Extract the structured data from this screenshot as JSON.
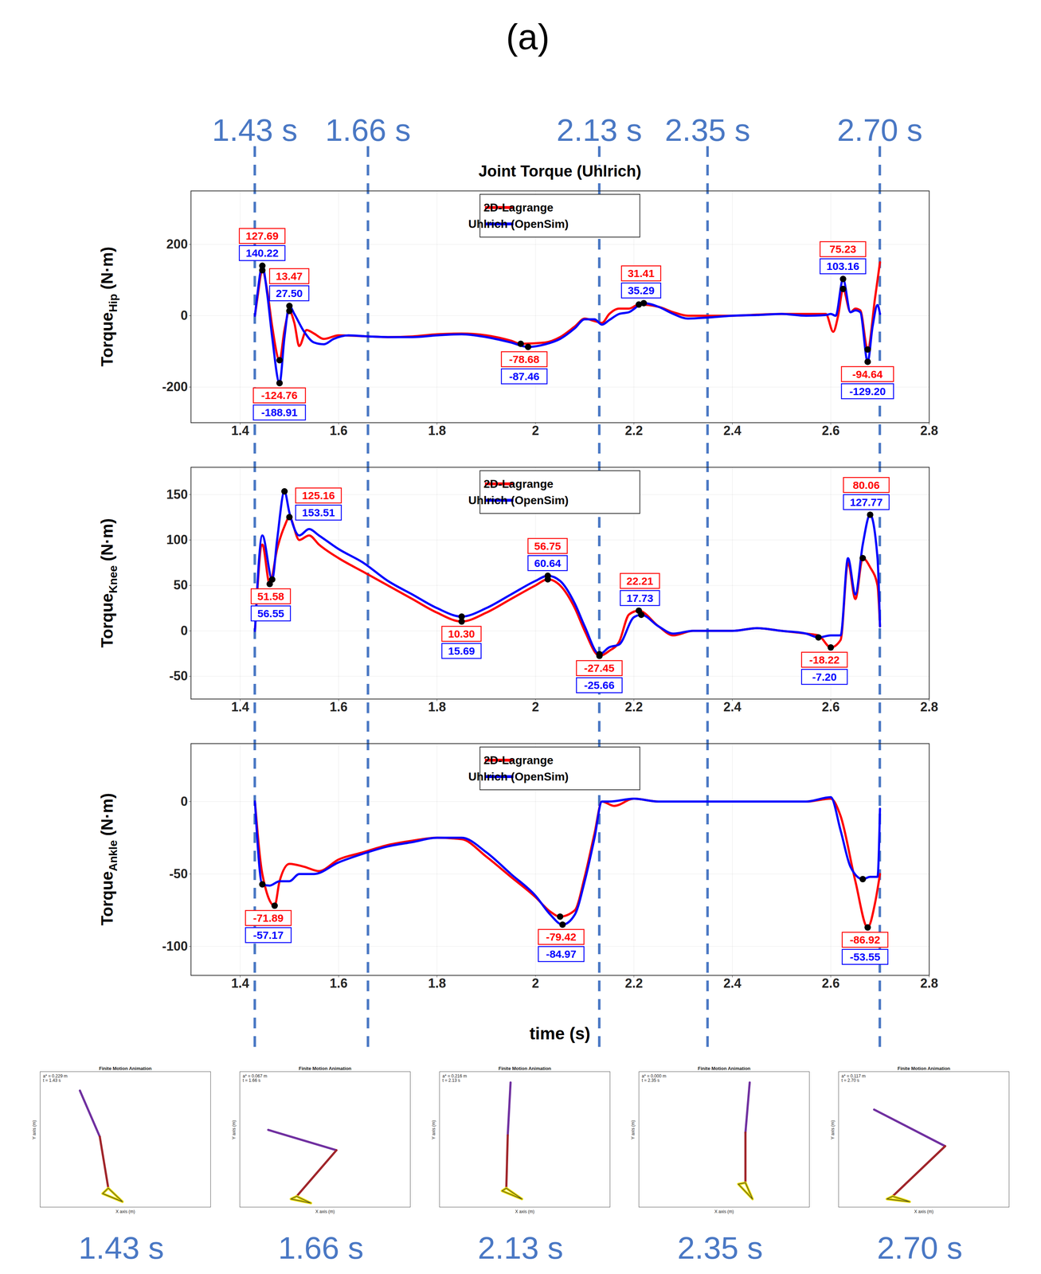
{
  "panel_label": "(a)",
  "time_markers": {
    "color": "#4a78c4",
    "line_style": "dashed",
    "ticks": [
      {
        "value": 1.43,
        "label": "1.43 s"
      },
      {
        "value": 1.66,
        "label": "1.66 s"
      },
      {
        "value": 2.13,
        "label": "2.13 s"
      },
      {
        "value": 2.35,
        "label": "2.35 s"
      },
      {
        "value": 2.7,
        "label": "2.70 s"
      }
    ]
  },
  "chart_data": [
    {
      "type": "line",
      "title": "Joint Torque (Uhlrich)",
      "ylabel": {
        "text": "Torque",
        "subscript": "Hip",
        "unit": "(N·m)"
      },
      "xlim": [
        1.3,
        2.8
      ],
      "xticks": [
        1.4,
        1.6,
        1.8,
        2,
        2.2,
        2.4,
        2.6,
        2.8
      ],
      "ylim": [
        -300,
        350
      ],
      "yticks": [
        -200,
        0,
        200
      ],
      "grid": true,
      "legend": "top",
      "series": [
        {
          "name": "2D-Lagrange",
          "color": "#ff0000",
          "x": [
            1.43,
            1.435,
            1.445,
            1.455,
            1.465,
            1.48,
            1.49,
            1.5,
            1.51,
            1.52,
            1.535,
            1.55,
            1.57,
            1.6,
            1.66,
            1.7,
            1.75,
            1.8,
            1.85,
            1.9,
            1.95,
            1.97,
            2.02,
            2.05,
            2.08,
            2.1,
            2.12,
            2.135,
            2.15,
            2.17,
            2.19,
            2.21,
            2.25,
            2.28,
            2.31,
            2.35,
            2.4,
            2.45,
            2.5,
            2.55,
            2.59,
            2.605,
            2.615,
            2.625,
            2.64,
            2.65,
            2.66,
            2.675,
            2.69,
            2.7
          ],
          "values": [
            0,
            50,
            127.69,
            70,
            -30,
            -124.76,
            -40,
            13.47,
            -20,
            -85,
            -40,
            -50,
            -65,
            -55,
            -58,
            -60,
            -58,
            -52,
            -50,
            -55,
            -70,
            -78.68,
            -75,
            -60,
            -30,
            -8,
            -15,
            -20,
            5,
            20,
            20,
            31.41,
            25,
            10,
            0,
            0,
            0,
            3,
            5,
            5,
            5,
            -45,
            0,
            75.23,
            10,
            20,
            15,
            -94.64,
            50,
            150
          ],
          "annotations": [
            {
              "x": 1.445,
              "y": 127.69,
              "label": "127.69"
            },
            {
              "x": 1.48,
              "y": -124.76,
              "label": "-124.76"
            },
            {
              "x": 1.5,
              "y": 13.47,
              "label": "13.47"
            },
            {
              "x": 1.97,
              "y": -78.68,
              "label": "-78.68"
            },
            {
              "x": 2.21,
              "y": 31.41,
              "label": "31.41"
            },
            {
              "x": 2.625,
              "y": 75.23,
              "label": "75.23"
            },
            {
              "x": 2.675,
              "y": -94.64,
              "label": "-94.64"
            }
          ]
        },
        {
          "name": "Uhlrich (OpenSim)",
          "color": "#0000ff",
          "x": [
            1.43,
            1.435,
            1.445,
            1.455,
            1.465,
            1.48,
            1.49,
            1.5,
            1.51,
            1.53,
            1.55,
            1.57,
            1.59,
            1.62,
            1.66,
            1.7,
            1.75,
            1.8,
            1.85,
            1.9,
            1.95,
            1.985,
            2.02,
            2.05,
            2.08,
            2.1,
            2.12,
            2.135,
            2.15,
            2.17,
            2.19,
            2.22,
            2.25,
            2.28,
            2.31,
            2.35,
            2.4,
            2.45,
            2.5,
            2.55,
            2.59,
            2.6,
            2.61,
            2.625,
            2.64,
            2.65,
            2.66,
            2.675,
            2.685,
            2.695,
            2.7
          ],
          "values": [
            0,
            60,
            140.22,
            60,
            -60,
            -188.91,
            -60,
            27.5,
            5,
            -45,
            -75,
            -80,
            -65,
            -55,
            -58,
            -60,
            -60,
            -55,
            -52,
            -60,
            -75,
            -87.46,
            -80,
            -65,
            -35,
            -10,
            -10,
            -25,
            -12,
            5,
            10,
            35.29,
            25,
            5,
            -8,
            -5,
            0,
            2,
            5,
            0,
            2,
            5,
            0,
            103.16,
            10,
            15,
            10,
            -129.2,
            -30,
            30,
            5
          ],
          "annotations": [
            {
              "x": 1.445,
              "y": 140.22,
              "label": "140.22"
            },
            {
              "x": 1.48,
              "y": -188.91,
              "label": "-188.91"
            },
            {
              "x": 1.5,
              "y": 27.5,
              "label": "27.50"
            },
            {
              "x": 1.985,
              "y": -87.46,
              "label": "-87.46"
            },
            {
              "x": 2.22,
              "y": 35.29,
              "label": "35.29"
            },
            {
              "x": 2.625,
              "y": 103.16,
              "label": "103.16"
            },
            {
              "x": 2.675,
              "y": -129.2,
              "label": "-129.20"
            }
          ]
        }
      ]
    },
    {
      "type": "line",
      "ylabel": {
        "text": "Torque",
        "subscript": "Knee",
        "unit": "(N·m)"
      },
      "xlim": [
        1.3,
        2.8
      ],
      "xticks": [
        1.4,
        1.6,
        1.8,
        2,
        2.2,
        2.4,
        2.6,
        2.8
      ],
      "ylim": [
        -75,
        180
      ],
      "yticks": [
        -50,
        0,
        50,
        100,
        150
      ],
      "grid": true,
      "legend": "top",
      "series": [
        {
          "name": "2D-Lagrange",
          "color": "#ff0000",
          "x": [
            1.43,
            1.445,
            1.46,
            1.475,
            1.49,
            1.5,
            1.52,
            1.54,
            1.56,
            1.6,
            1.65,
            1.7,
            1.75,
            1.8,
            1.85,
            1.9,
            1.95,
            2,
            2.025,
            2.05,
            2.08,
            2.1,
            2.13,
            2.15,
            2.17,
            2.19,
            2.21,
            2.25,
            2.28,
            2.32,
            2.4,
            2.45,
            2.5,
            2.55,
            2.575,
            2.6,
            2.62,
            2.635,
            2.65,
            2.665,
            2.68,
            2.695,
            2.7
          ],
          "values": [
            0,
            95,
            51.58,
            90,
            115,
            125.16,
            100,
            105,
            95,
            80,
            65,
            50,
            35,
            20,
            10.3,
            20,
            35,
            50,
            56.75,
            50,
            25,
            0,
            -27.45,
            -22,
            -12,
            18,
            22.21,
            5,
            -5,
            0,
            0,
            3,
            0,
            -3,
            -5,
            -18.22,
            -10,
            75,
            35,
            80.06,
            70,
            50,
            5
          ],
          "annotations": [
            {
              "x": 1.46,
              "y": 51.58,
              "label": "51.58"
            },
            {
              "x": 1.5,
              "y": 125.16,
              "label": "125.16"
            },
            {
              "x": 1.85,
              "y": 10.3,
              "label": "10.30"
            },
            {
              "x": 2.025,
              "y": 56.75,
              "label": "56.75"
            },
            {
              "x": 2.13,
              "y": -27.45,
              "label": "-27.45"
            },
            {
              "x": 2.21,
              "y": 22.21,
              "label": "22.21"
            },
            {
              "x": 2.6,
              "y": -18.22,
              "label": "-18.22"
            },
            {
              "x": 2.665,
              "y": 80.06,
              "label": "80.06"
            }
          ]
        },
        {
          "name": "Uhlrich (OpenSim)",
          "color": "#0000ff",
          "x": [
            1.43,
            1.445,
            1.465,
            1.475,
            1.49,
            1.5,
            1.52,
            1.54,
            1.56,
            1.6,
            1.65,
            1.7,
            1.75,
            1.8,
            1.85,
            1.9,
            1.95,
            2,
            2.025,
            2.05,
            2.08,
            2.1,
            2.13,
            2.15,
            2.17,
            2.2,
            2.215,
            2.25,
            2.28,
            2.32,
            2.4,
            2.45,
            2.5,
            2.55,
            2.575,
            2.6,
            2.62,
            2.635,
            2.65,
            2.665,
            2.68,
            2.695,
            2.7
          ],
          "values": [
            0,
            105,
            56.55,
            100,
            153.51,
            130,
            105,
            112,
            105,
            90,
            75,
            55,
            40,
            25,
            15.69,
            25,
            40,
            55,
            60.64,
            55,
            30,
            5,
            -25.66,
            -18,
            -15,
            15,
            17.73,
            5,
            -3,
            0,
            0,
            3,
            0,
            -3,
            -7.2,
            -5,
            -5,
            80,
            40,
            95,
            127.77,
            80,
            5
          ],
          "annotations": [
            {
              "x": 1.465,
              "y": 56.55,
              "label": "56.55"
            },
            {
              "x": 1.49,
              "y": 153.51,
              "label": "153.51"
            },
            {
              "x": 1.85,
              "y": 15.69,
              "label": "15.69"
            },
            {
              "x": 2.025,
              "y": 60.64,
              "label": "60.64"
            },
            {
              "x": 2.13,
              "y": -25.66,
              "label": "-25.66"
            },
            {
              "x": 2.215,
              "y": 17.73,
              "label": "17.73"
            },
            {
              "x": 2.575,
              "y": -7.2,
              "label": "-7.20"
            },
            {
              "x": 2.68,
              "y": 127.77,
              "label": "127.77"
            }
          ]
        }
      ]
    },
    {
      "type": "line",
      "xlabel": "time (s)",
      "ylabel": {
        "text": "Torque",
        "subscript": "Ankle",
        "unit": "(N·m)"
      },
      "xlim": [
        1.3,
        2.8
      ],
      "xticks": [
        1.4,
        1.6,
        1.8,
        2,
        2.2,
        2.4,
        2.6,
        2.8
      ],
      "ylim": [
        -120,
        40
      ],
      "yticks": [
        -100,
        -50,
        0
      ],
      "grid": true,
      "legend": "top",
      "series": [
        {
          "name": "2D-Lagrange",
          "color": "#ff0000",
          "x": [
            1.43,
            1.445,
            1.47,
            1.48,
            1.5,
            1.53,
            1.56,
            1.6,
            1.65,
            1.7,
            1.75,
            1.8,
            1.85,
            1.9,
            1.95,
            2,
            2.03,
            2.05,
            2.08,
            2.1,
            2.12,
            2.135,
            2.16,
            2.2,
            2.25,
            2.3,
            2.4,
            2.5,
            2.55,
            2.6,
            2.62,
            2.65,
            2.675,
            2.69,
            2.7
          ],
          "values": [
            0,
            -50,
            -71.89,
            -55,
            -43,
            -45,
            -48,
            -40,
            -35,
            -30,
            -27,
            -25,
            -26,
            -38,
            -52,
            -66,
            -76,
            -79.42,
            -75,
            -52,
            -22,
            0,
            -3,
            2,
            0,
            0,
            0,
            0,
            0,
            2,
            -10,
            -55,
            -86.92,
            -70,
            -50
          ],
          "annotations": [
            {
              "x": 1.47,
              "y": -71.89,
              "label": "-71.89"
            },
            {
              "x": 2.05,
              "y": -79.42,
              "label": "-79.42"
            },
            {
              "x": 2.675,
              "y": -86.92,
              "label": "-86.92"
            }
          ]
        },
        {
          "name": "Uhlrich (OpenSim)",
          "color": "#0000ff",
          "x": [
            1.43,
            1.445,
            1.46,
            1.48,
            1.5,
            1.52,
            1.55,
            1.6,
            1.65,
            1.7,
            1.75,
            1.8,
            1.85,
            1.9,
            1.95,
            2,
            2.03,
            2.055,
            2.08,
            2.1,
            2.12,
            2.135,
            2.15,
            2.2,
            2.25,
            2.3,
            2.4,
            2.5,
            2.55,
            2.6,
            2.62,
            2.64,
            2.665,
            2.68,
            2.695,
            2.7
          ],
          "values": [
            0,
            -57.17,
            -58,
            -55,
            -55,
            -50,
            -50,
            -42,
            -36,
            -31,
            -28,
            -25,
            -25,
            -35,
            -50,
            -65,
            -78,
            -84.97,
            -78,
            -55,
            -25,
            0,
            0,
            2,
            0,
            0,
            0,
            0,
            0,
            3,
            -20,
            -45,
            -53.55,
            -52,
            -52,
            -5
          ],
          "annotations": [
            {
              "x": 1.445,
              "y": -57.17,
              "label": "-57.17"
            },
            {
              "x": 2.055,
              "y": -84.97,
              "label": "-84.97"
            },
            {
              "x": 2.665,
              "y": -53.55,
              "label": "-53.55"
            }
          ]
        }
      ]
    }
  ],
  "animations": {
    "type": "line",
    "title": "Finite Motion Animation",
    "xlabel": "X axis (m)",
    "ylabel": "Y axis (m)",
    "xlim": [
      -0.8,
      0.4
    ],
    "ylim": [
      0,
      1
    ],
    "tick_labels": false,
    "colors": {
      "thigh": "#7030a0",
      "shank": "#a0252a",
      "foot": "#e6d800"
    },
    "frames": [
      {
        "caption": "1.43 s",
        "lines": [
          "a* = 0.229 m",
          "t = 1.43 s"
        ],
        "points": {
          "hip": [
            -0.52,
            0.86
          ],
          "knee": [
            -0.38,
            0.52
          ],
          "ankle": [
            -0.32,
            0.14
          ],
          "heel": [
            -0.36,
            0.1
          ],
          "toe": [
            -0.22,
            0.04
          ]
        }
      },
      {
        "caption": "1.66 s",
        "lines": [
          "a* = 0.067 m",
          "t = 1.66 s"
        ],
        "points": {
          "hip": [
            -0.6,
            0.57
          ],
          "knee": [
            -0.12,
            0.42
          ],
          "ankle": [
            -0.4,
            0.08
          ],
          "heel": [
            -0.44,
            0.06
          ],
          "toe": [
            -0.3,
            0.03
          ]
        }
      },
      {
        "caption": "2.13 s",
        "lines": [
          "a* = 0.216 m",
          "t = 2.13 s"
        ],
        "points": {
          "hip": [
            -0.3,
            0.92
          ],
          "knee": [
            -0.32,
            0.53
          ],
          "ankle": [
            -0.33,
            0.14
          ],
          "heel": [
            -0.36,
            0.12
          ],
          "toe": [
            -0.22,
            0.06
          ]
        }
      },
      {
        "caption": "2.35 s",
        "lines": [
          "a* = 0.000 m",
          "t = 2.35 s"
        ],
        "points": {
          "hip": [
            -0.02,
            0.92
          ],
          "knee": [
            -0.05,
            0.55
          ],
          "ankle": [
            -0.05,
            0.18
          ],
          "heel": [
            -0.1,
            0.17
          ],
          "toe": [
            0.0,
            0.06
          ]
        }
      },
      {
        "caption": "2.70 s",
        "lines": [
          "a* = 0.117 m",
          "t = 2.70 s"
        ],
        "points": {
          "hip": [
            -0.55,
            0.72
          ],
          "knee": [
            -0.05,
            0.45
          ],
          "ankle": [
            -0.42,
            0.08
          ],
          "heel": [
            -0.46,
            0.06
          ],
          "toe": [
            -0.3,
            0.04
          ]
        }
      }
    ]
  }
}
